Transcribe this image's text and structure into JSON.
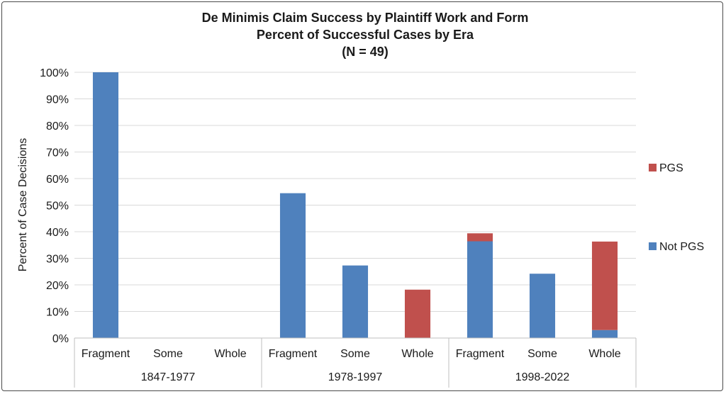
{
  "chart_data": {
    "type": "bar",
    "stacked": true,
    "title": [
      "De Minimis Claim Success by Plaintiff Work and Form",
      "Percent of Successful Cases by Era",
      "(N = 49)"
    ],
    "ylabel": "Percent of Case Decisions",
    "xlabel": "",
    "ylim": [
      0,
      100
    ],
    "y_ticks": [
      "0%",
      "10%",
      "20%",
      "30%",
      "40%",
      "50%",
      "60%",
      "70%",
      "80%",
      "90%",
      "100%"
    ],
    "grid": true,
    "legend_position": "right",
    "groups": [
      {
        "label": "1847-1977",
        "categories": [
          "Fragment",
          "Some",
          "Whole"
        ]
      },
      {
        "label": "1978-1997",
        "categories": [
          "Fragment",
          "Some",
          "Whole"
        ]
      },
      {
        "label": "1998-2022",
        "categories": [
          "Fragment",
          "Some",
          "Whole"
        ]
      }
    ],
    "series": [
      {
        "name": "Not PGS",
        "color": "#4f81bd",
        "values": [
          100,
          0,
          0,
          54.5,
          27.3,
          0,
          36.4,
          24.2,
          3.0
        ]
      },
      {
        "name": "PGS",
        "color": "#c0504d",
        "values": [
          0,
          0,
          0,
          0,
          0,
          18.2,
          3.0,
          0,
          33.3
        ]
      }
    ]
  }
}
